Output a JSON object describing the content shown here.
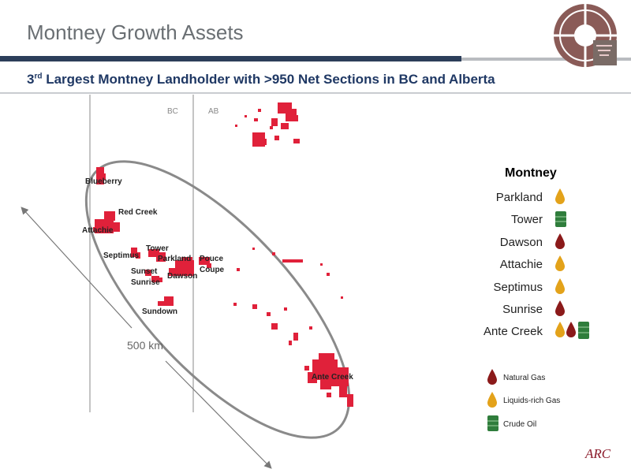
{
  "slide": {
    "title": "Montney Growth Assets",
    "subtitle_prefix": "3",
    "subtitle_sup": "rd",
    "subtitle_rest": " Largest Montney Landholder with >950 Net Sections in BC and Alberta"
  },
  "map": {
    "bc_label": "BC",
    "ab_label": "AB",
    "scale_label": "500 km",
    "areas": [
      "Blueberry",
      "Red Creek",
      "Attachie",
      "Septimus",
      "Tower",
      "Parkland",
      "Pouce",
      "Coupe",
      "Sunset",
      "Sunrise",
      "Dawson",
      "Sundown",
      "Ante Creek"
    ]
  },
  "legend": {
    "heading": "Montney",
    "rows": [
      {
        "label": "Parkland",
        "icons": [
          "liquids-rich-gas"
        ]
      },
      {
        "label": "Tower",
        "icons": [
          "crude-oil"
        ]
      },
      {
        "label": "Dawson",
        "icons": [
          "natural-gas"
        ]
      },
      {
        "label": "Attachie",
        "icons": [
          "liquids-rich-gas"
        ]
      },
      {
        "label": "Septimus",
        "icons": [
          "liquids-rich-gas"
        ]
      },
      {
        "label": "Sunrise",
        "icons": [
          "natural-gas"
        ]
      },
      {
        "label": "Ante Creek",
        "icons": [
          "liquids-rich-gas",
          "natural-gas",
          "crude-oil"
        ]
      }
    ]
  },
  "key": {
    "natural_gas": "Natural Gas",
    "liquids_rich_gas": "Liquids-rich Gas",
    "crude_oil": "Crude Oil"
  },
  "colors": {
    "title": "#6a6f73",
    "subtitle": "#1f3864",
    "bar": "#2c3e5a",
    "land": "#e0213a",
    "natural_gas": "#8b1a1a",
    "liquids_rich_gas": "#e3a21a",
    "crude_oil": "#2f7d3c",
    "logo": "#7a6b66"
  },
  "brand": {
    "company_logo": "ARC"
  }
}
